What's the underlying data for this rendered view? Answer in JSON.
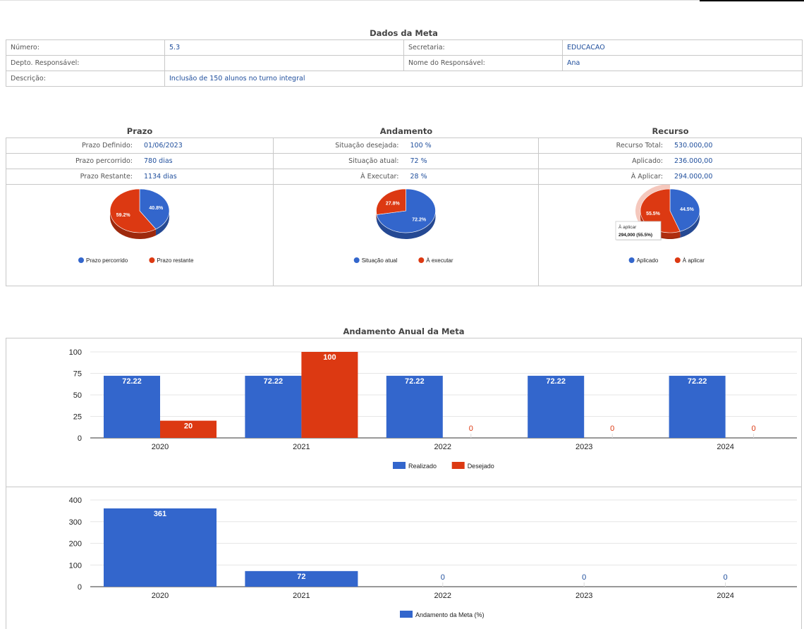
{
  "meta": {
    "title": "Dados da Meta",
    "rows": [
      {
        "l1": "Número:",
        "v1": "5.3",
        "l2": "Secretaria:",
        "v2": "EDUCACAO"
      },
      {
        "l1": "Depto. Responsável:",
        "v1": "",
        "l2": "Nome do Responsável:",
        "v2": "Ana"
      },
      {
        "l1": "Descrição:",
        "v1": "Inclusão de 150 alunos no turno integral",
        "l2": "",
        "v2": ""
      }
    ]
  },
  "prazo": {
    "title": "Prazo",
    "rows": [
      {
        "label": "Prazo Definido:",
        "value": "01/06/2023"
      },
      {
        "label": "Prazo percorrido:",
        "value": "780 dias"
      },
      {
        "label": "Prazo Restante:",
        "value": "1134 dias"
      }
    ]
  },
  "andamento": {
    "title": "Andamento",
    "rows": [
      {
        "label": "Situação desejada:",
        "value": "100 %"
      },
      {
        "label": "Situação atual:",
        "value": "72 %"
      },
      {
        "label": "À Executar:",
        "value": "28 %"
      }
    ]
  },
  "recurso": {
    "title": "Recurso",
    "rows": [
      {
        "label": "Recurso Total:",
        "value": "530.000,00"
      },
      {
        "label": "Aplicado:",
        "value": "236.000,00"
      },
      {
        "label": "À Aplicar:",
        "value": "294.000,00"
      }
    ],
    "tooltip": {
      "line1": "À aplicar",
      "line2": "294,000 (55.5%)"
    }
  },
  "colors": {
    "blue": "#3366cc",
    "red": "#dc3912",
    "label_blue": "#1f4e9c"
  },
  "anual": {
    "title": "Andamento Anual da Meta"
  },
  "chart_data": [
    {
      "type": "pie",
      "labels": [
        "Prazo percorrido",
        "Prazo restante"
      ],
      "values": [
        40.8,
        59.2
      ],
      "data_labels": [
        "40.8%",
        "59.2%"
      ]
    },
    {
      "type": "pie",
      "labels": [
        "Situação atual",
        "À executar"
      ],
      "values": [
        72.2,
        27.8
      ],
      "data_labels": [
        "72.2%",
        "27.8%"
      ]
    },
    {
      "type": "pie",
      "labels": [
        "Aplicado",
        "À aplicar"
      ],
      "values": [
        44.5,
        55.5
      ],
      "data_labels": [
        "44.5%",
        "55.5%"
      ]
    },
    {
      "type": "bar",
      "categories": [
        "2020",
        "2021",
        "2022",
        "2023",
        "2024"
      ],
      "series": [
        {
          "name": "Realizado",
          "values": [
            72.22,
            72.22,
            72.22,
            72.22,
            72.22
          ],
          "labels": [
            "72.22",
            "72.22",
            "72.22",
            "72.22",
            "72.22"
          ]
        },
        {
          "name": "Desejado",
          "values": [
            20,
            100,
            0,
            0,
            0
          ],
          "labels": [
            "20",
            "100",
            "0",
            "0",
            "0"
          ]
        }
      ],
      "ylim": [
        0,
        100
      ],
      "yticks": [
        0,
        25,
        50,
        75,
        100
      ],
      "legend": "bottom"
    },
    {
      "type": "bar",
      "categories": [
        "2020",
        "2021",
        "2022",
        "2023",
        "2024"
      ],
      "series": [
        {
          "name": "Andamento da Meta (%)",
          "values": [
            361,
            72,
            0,
            0,
            0
          ],
          "labels": [
            "361",
            "72",
            "0",
            "0",
            "0"
          ]
        }
      ],
      "ylim": [
        0,
        400
      ],
      "yticks": [
        0,
        100,
        200,
        300,
        400
      ],
      "legend": "bottom"
    }
  ]
}
